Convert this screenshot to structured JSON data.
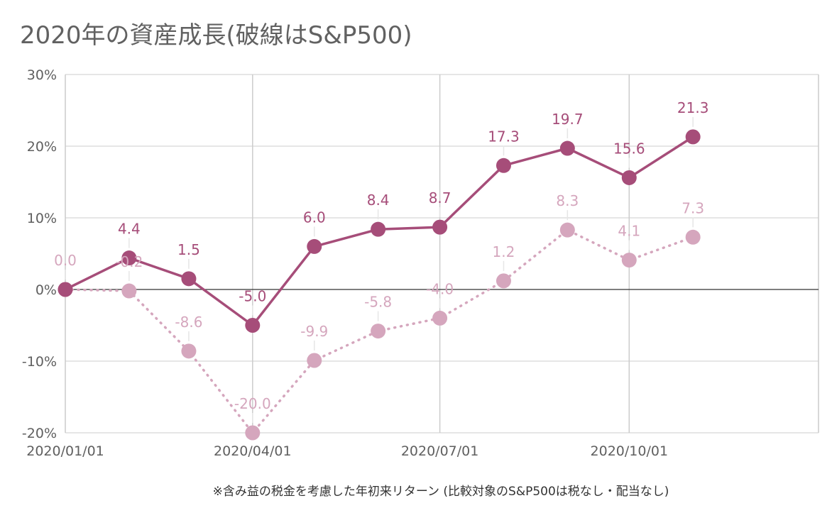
{
  "title": "2020年の資産成長(破線はS&P500)",
  "footnote": "※含み益の税金を考慮した年初来リターン (比較対象のS&P500は税なし・配当なし)",
  "colors": {
    "portfolio": "#a64d79",
    "sp500": "#d5a6bd",
    "grid": "#cccccc",
    "zero_line": "#333333",
    "tick_text": "#5f5f5f"
  },
  "chart_data": {
    "type": "line",
    "title": "2020年の資産成長(破線はS&P500)",
    "xlabel": "",
    "ylabel": "",
    "x_tick_labels": [
      "2020/01/01",
      "2020/04/01",
      "2020/07/01",
      "2020/10/01"
    ],
    "y_tick_labels": [
      "30%",
      "20%",
      "10%",
      "0%",
      "-10%",
      "-20%"
    ],
    "y_ticks": [
      30,
      20,
      10,
      0,
      -10,
      -20
    ],
    "ylim": [
      -20,
      30
    ],
    "x_domain": [
      "2020-01-01",
      "2021-01-01"
    ],
    "grid": true,
    "x": [
      "2020-01-01",
      "2020-02-01",
      "2020-03-01",
      "2020-04-01",
      "2020-05-01",
      "2020-06-01",
      "2020-07-01",
      "2020-08-01",
      "2020-09-01",
      "2020-10-01",
      "2020-11-01"
    ],
    "series": [
      {
        "values": [
          0.0,
          4.4,
          1.5,
          -5.0,
          6.0,
          8.4,
          8.7,
          17.3,
          19.7,
          15.6,
          21.3
        ],
        "labels": [
          "",
          "4.4",
          "1.5",
          "-5.0",
          "6.0",
          "8.4",
          "8.7",
          "17.3",
          "19.7",
          "15.6",
          "21.3"
        ],
        "style": "solid",
        "color": "#a64d79"
      },
      {
        "values": [
          0.0,
          -0.2,
          -8.6,
          -20.0,
          -9.9,
          -5.8,
          -4.0,
          1.2,
          8.3,
          4.1,
          7.3
        ],
        "labels": [
          "0.0",
          "-0.2",
          "-8.6",
          "-20.0",
          "-9.9",
          "-5.8",
          "-4.0",
          "1.2",
          "8.3",
          "4.1",
          "7.3"
        ],
        "style": "dotted",
        "color": "#d5a6bd"
      }
    ]
  }
}
